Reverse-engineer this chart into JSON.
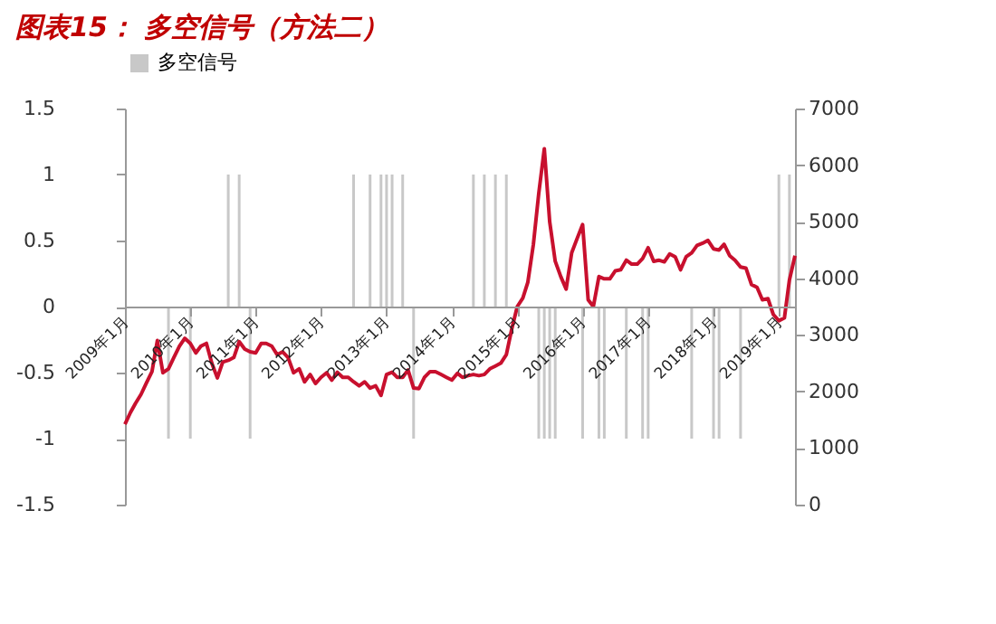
{
  "chart_data": {
    "type": "bar",
    "title": "图表15：  多空信号（方法二）",
    "xlim": [
      "2009-01",
      "2019-04"
    ],
    "xticks": [
      {
        "value": "2009-01",
        "label": "2009年1月"
      },
      {
        "value": "2010-01",
        "label": "2010年1月"
      },
      {
        "value": "2011-01",
        "label": "2011年1月"
      },
      {
        "value": "2012-01",
        "label": "2012年1月"
      },
      {
        "value": "2013-01",
        "label": "2013年1月"
      },
      {
        "value": "2014-01",
        "label": "2014年1月"
      },
      {
        "value": "2015-01",
        "label": "2015年1月"
      },
      {
        "value": "2016-01",
        "label": "2016年1月"
      },
      {
        "value": "2017-01",
        "label": "2017年1月"
      },
      {
        "value": "2018-01",
        "label": "2018年1月"
      },
      {
        "value": "2019-01",
        "label": "2019年1月"
      }
    ],
    "ylim": [
      -1.5,
      1.5
    ],
    "yticks": [
      -1.5,
      -1,
      -0.5,
      0,
      0.5,
      1,
      1.5
    ],
    "y2lim": [
      0,
      7000
    ],
    "y2ticks": [
      0,
      1000,
      2000,
      3000,
      4000,
      5000,
      6000,
      7000
    ],
    "legend": "top",
    "grid": false,
    "marker": "none",
    "line_style": "solid",
    "series": [
      {
        "name": "多空信号",
        "color": "#c8c8c8",
        "x": [
          "2009-09",
          "2010-01",
          "2010-08",
          "2010-10",
          "2010-12",
          "2012-07",
          "2012-10",
          "2012-12",
          "2013-01",
          "2013-02",
          "2013-04",
          "2013-06",
          "2014-05",
          "2014-07",
          "2014-09",
          "2014-11",
          "2015-05",
          "2015-06",
          "2015-07",
          "2015-08",
          "2016-01",
          "2016-04",
          "2016-05",
          "2016-09",
          "2016-12",
          "2017-01",
          "2017-09",
          "2018-01",
          "2018-02",
          "2018-06",
          "2019-01",
          "2019-03"
        ],
        "values": [
          -1,
          -1,
          1,
          1,
          -1,
          1,
          1,
          1,
          1,
          1,
          1,
          -1,
          1,
          1,
          1,
          1,
          -1,
          -1,
          -1,
          -1,
          -1,
          -1,
          -1,
          -1,
          -1,
          -1,
          -1,
          -1,
          -1,
          -1,
          1,
          1
        ]
      },
      {
        "type": "line",
        "axis": "y2",
        "color": "#c8102e",
        "x": [
          "2009-01",
          "2009-02",
          "2009-03",
          "2009-04",
          "2009-05",
          "2009-06",
          "2009-07",
          "2009-08",
          "2009-09",
          "2009-10",
          "2009-11",
          "2009-12",
          "2010-01",
          "2010-02",
          "2010-03",
          "2010-04",
          "2010-05",
          "2010-06",
          "2010-07",
          "2010-08",
          "2010-09",
          "2010-10",
          "2010-11",
          "2010-12",
          "2011-01",
          "2011-02",
          "2011-03",
          "2011-04",
          "2011-05",
          "2011-06",
          "2011-07",
          "2011-08",
          "2011-09",
          "2011-10",
          "2011-11",
          "2011-12",
          "2012-01",
          "2012-02",
          "2012-03",
          "2012-04",
          "2012-05",
          "2012-06",
          "2012-07",
          "2012-08",
          "2012-09",
          "2012-10",
          "2012-11",
          "2012-12",
          "2013-01",
          "2013-02",
          "2013-03",
          "2013-04",
          "2013-05",
          "2013-06",
          "2013-07",
          "2013-08",
          "2013-09",
          "2013-10",
          "2013-11",
          "2013-12",
          "2014-01",
          "2014-02",
          "2014-03",
          "2014-04",
          "2014-05",
          "2014-06",
          "2014-07",
          "2014-08",
          "2014-09",
          "2014-10",
          "2014-11",
          "2014-12",
          "2015-01",
          "2015-02",
          "2015-03",
          "2015-04",
          "2015-05",
          "2015-06",
          "2015-07",
          "2015-08",
          "2015-09",
          "2015-10",
          "2015-11",
          "2015-12",
          "2016-01",
          "2016-02",
          "2016-03",
          "2016-04",
          "2016-05",
          "2016-06",
          "2016-07",
          "2016-08",
          "2016-09",
          "2016-10",
          "2016-11",
          "2016-12",
          "2017-01",
          "2017-02",
          "2017-03",
          "2017-04",
          "2017-05",
          "2017-06",
          "2017-07",
          "2017-08",
          "2017-09",
          "2017-10",
          "2017-11",
          "2017-12",
          "2018-01",
          "2018-02",
          "2018-03",
          "2018-04",
          "2018-05",
          "2018-06",
          "2018-07",
          "2018-08",
          "2018-09",
          "2018-10",
          "2018-11",
          "2018-12",
          "2019-01",
          "2019-02",
          "2019-03",
          "2019-04"
        ],
        "values": [
          1420,
          1630,
          1790,
          1950,
          2150,
          2350,
          2900,
          2330,
          2400,
          2600,
          2800,
          2940,
          2850,
          2680,
          2800,
          2850,
          2500,
          2240,
          2520,
          2550,
          2600,
          2880,
          2750,
          2700,
          2680,
          2850,
          2850,
          2800,
          2650,
          2700,
          2600,
          2330,
          2400,
          2170,
          2300,
          2140,
          2250,
          2330,
          2200,
          2340,
          2250,
          2250,
          2170,
          2100,
          2170,
          2060,
          2100,
          1930,
          2300,
          2340,
          2250,
          2250,
          2380,
          2060,
          2050,
          2250,
          2350,
          2350,
          2300,
          2250,
          2200,
          2320,
          2250,
          2280,
          2300,
          2280,
          2300,
          2400,
          2450,
          2500,
          2650,
          3100,
          3500,
          3650,
          3930,
          4600,
          5500,
          6290,
          5000,
          4300,
          4030,
          3810,
          4450,
          4700,
          4950,
          3620,
          3500,
          4030,
          3990,
          3990,
          4130,
          4150,
          4320,
          4250,
          4250,
          4350,
          4540,
          4300,
          4320,
          4290,
          4430,
          4380,
          4150,
          4380,
          4450,
          4580,
          4620,
          4670,
          4520,
          4500,
          4600,
          4400,
          4320,
          4200,
          4180,
          3890,
          3840,
          3620,
          3640,
          3360,
          3250,
          3300,
          3970,
          4400
        ]
      }
    ]
  }
}
